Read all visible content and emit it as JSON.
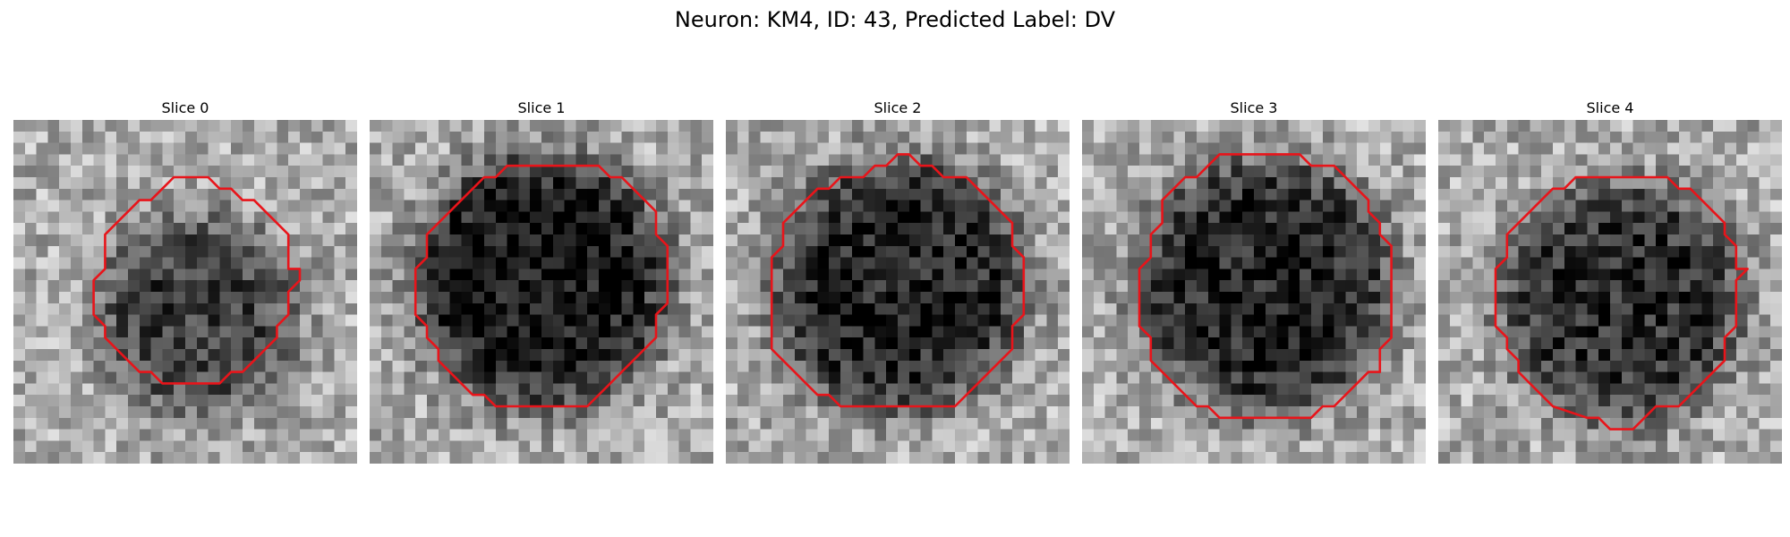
{
  "figure": {
    "title": "Neuron: KM4, ID: 43, Predicted Label: DV",
    "contour_color": "#e8141a",
    "grid_size": 30,
    "slices": [
      {
        "label": "Slice 0",
        "seed": 11,
        "cx": 16,
        "cy": 17,
        "r": 8.5,
        "darkness": 0.45,
        "contour": [
          [
            14,
            5
          ],
          [
            17,
            5
          ],
          [
            18,
            6
          ],
          [
            19,
            6
          ],
          [
            20,
            7
          ],
          [
            21,
            7
          ],
          [
            22,
            8
          ],
          [
            23,
            9
          ],
          [
            24,
            10
          ],
          [
            24,
            12
          ],
          [
            24,
            13
          ],
          [
            25,
            13
          ],
          [
            25,
            14
          ],
          [
            24,
            15
          ],
          [
            24,
            17
          ],
          [
            23,
            18
          ],
          [
            23,
            19
          ],
          [
            22,
            20
          ],
          [
            21,
            21
          ],
          [
            20,
            22
          ],
          [
            19,
            22
          ],
          [
            18,
            23
          ],
          [
            13,
            23
          ],
          [
            12,
            22
          ],
          [
            11,
            22
          ],
          [
            10,
            21
          ],
          [
            9,
            20
          ],
          [
            8,
            19
          ],
          [
            8,
            18
          ],
          [
            7,
            17
          ],
          [
            7,
            14
          ],
          [
            8,
            13
          ],
          [
            8,
            10
          ],
          [
            9,
            9
          ],
          [
            10,
            8
          ],
          [
            11,
            7
          ],
          [
            12,
            7
          ],
          [
            13,
            6
          ]
        ]
      },
      {
        "label": "Slice 1",
        "seed": 23,
        "cx": 15,
        "cy": 14,
        "r": 11,
        "darkness": 0.6,
        "contour": [
          [
            12,
            4
          ],
          [
            20,
            4
          ],
          [
            21,
            5
          ],
          [
            22,
            5
          ],
          [
            23,
            6
          ],
          [
            24,
            7
          ],
          [
            25,
            8
          ],
          [
            25,
            10
          ],
          [
            26,
            11
          ],
          [
            26,
            16
          ],
          [
            25,
            17
          ],
          [
            25,
            19
          ],
          [
            24,
            20
          ],
          [
            23,
            21
          ],
          [
            22,
            22
          ],
          [
            21,
            23
          ],
          [
            19,
            25
          ],
          [
            11,
            25
          ],
          [
            10,
            24
          ],
          [
            9,
            24
          ],
          [
            8,
            23
          ],
          [
            7,
            22
          ],
          [
            6,
            21
          ],
          [
            6,
            20
          ],
          [
            5,
            19
          ],
          [
            5,
            18
          ],
          [
            4,
            17
          ],
          [
            4,
            13
          ],
          [
            5,
            12
          ],
          [
            5,
            10
          ],
          [
            6,
            9
          ],
          [
            7,
            8
          ],
          [
            8,
            7
          ],
          [
            9,
            6
          ],
          [
            10,
            5
          ],
          [
            11,
            5
          ]
        ]
      },
      {
        "label": "Slice 2",
        "seed": 37,
        "cx": 15,
        "cy": 14.5,
        "r": 11,
        "darkness": 0.55,
        "contour": [
          [
            15,
            3
          ],
          [
            16,
            3
          ],
          [
            17,
            4
          ],
          [
            18,
            4
          ],
          [
            19,
            5
          ],
          [
            21,
            5
          ],
          [
            22,
            6
          ],
          [
            23,
            7
          ],
          [
            24,
            8
          ],
          [
            25,
            9
          ],
          [
            25,
            11
          ],
          [
            26,
            12
          ],
          [
            26,
            17
          ],
          [
            25,
            18
          ],
          [
            25,
            20
          ],
          [
            24,
            21
          ],
          [
            23,
            22
          ],
          [
            22,
            23
          ],
          [
            21,
            24
          ],
          [
            20,
            25
          ],
          [
            10,
            25
          ],
          [
            9,
            24
          ],
          [
            8,
            24
          ],
          [
            7,
            23
          ],
          [
            6,
            22
          ],
          [
            5,
            21
          ],
          [
            4,
            20
          ],
          [
            4,
            12
          ],
          [
            5,
            11
          ],
          [
            5,
            9
          ],
          [
            6,
            8
          ],
          [
            7,
            7
          ],
          [
            8,
            6
          ],
          [
            9,
            6
          ],
          [
            10,
            5
          ],
          [
            12,
            5
          ],
          [
            13,
            4
          ],
          [
            14,
            4
          ]
        ]
      },
      {
        "label": "Slice 3",
        "seed": 51,
        "cx": 16,
        "cy": 14.5,
        "r": 11,
        "darkness": 0.55,
        "contour": [
          [
            12,
            3
          ],
          [
            19,
            3
          ],
          [
            20,
            4
          ],
          [
            22,
            4
          ],
          [
            23,
            5
          ],
          [
            24,
            6
          ],
          [
            25,
            7
          ],
          [
            25,
            8
          ],
          [
            26,
            9
          ],
          [
            26,
            10
          ],
          [
            27,
            11
          ],
          [
            27,
            19
          ],
          [
            26,
            20
          ],
          [
            26,
            22
          ],
          [
            25,
            22
          ],
          [
            24,
            23
          ],
          [
            22,
            25
          ],
          [
            21,
            25
          ],
          [
            20,
            26
          ],
          [
            12,
            26
          ],
          [
            11,
            25
          ],
          [
            10,
            25
          ],
          [
            9,
            24
          ],
          [
            8,
            23
          ],
          [
            7,
            22
          ],
          [
            6,
            21
          ],
          [
            6,
            19
          ],
          [
            5,
            18
          ],
          [
            5,
            13
          ],
          [
            6,
            12
          ],
          [
            6,
            10
          ],
          [
            7,
            9
          ],
          [
            7,
            7
          ],
          [
            8,
            6
          ],
          [
            9,
            5
          ],
          [
            10,
            5
          ],
          [
            11,
            4
          ]
        ]
      },
      {
        "label": "Slice 4",
        "seed": 67,
        "cx": 16,
        "cy": 16,
        "r": 10.5,
        "darkness": 0.5,
        "contour": [
          [
            13,
            5
          ],
          [
            20,
            5
          ],
          [
            21,
            6
          ],
          [
            22,
            6
          ],
          [
            23,
            7
          ],
          [
            24,
            8
          ],
          [
            25,
            9
          ],
          [
            25,
            10
          ],
          [
            26,
            11
          ],
          [
            26,
            13
          ],
          [
            27,
            13
          ],
          [
            26,
            14
          ],
          [
            26,
            18
          ],
          [
            25,
            19
          ],
          [
            25,
            21
          ],
          [
            24,
            22
          ],
          [
            23,
            23
          ],
          [
            22,
            24
          ],
          [
            21,
            25
          ],
          [
            19,
            25
          ],
          [
            18,
            26
          ],
          [
            17,
            27
          ],
          [
            15,
            27
          ],
          [
            14,
            26
          ],
          [
            13,
            26
          ],
          [
            10,
            25
          ],
          [
            9,
            24
          ],
          [
            8,
            23
          ],
          [
            7,
            22
          ],
          [
            7,
            21
          ],
          [
            6,
            20
          ],
          [
            6,
            19
          ],
          [
            5,
            18
          ],
          [
            5,
            13
          ],
          [
            6,
            12
          ],
          [
            6,
            10
          ],
          [
            7,
            9
          ],
          [
            8,
            8
          ],
          [
            9,
            7
          ],
          [
            10,
            6
          ],
          [
            11,
            6
          ],
          [
            12,
            5
          ]
        ]
      }
    ]
  }
}
